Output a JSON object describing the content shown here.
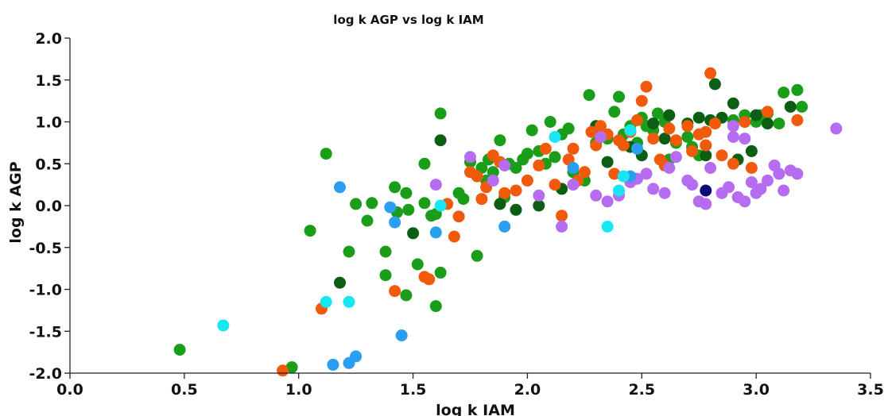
{
  "chart_data": {
    "type": "scatter",
    "title": "log k AGP vs log k IAM",
    "xlabel": "log k IAM",
    "ylabel": "log k AGP",
    "xlim": [
      0.0,
      3.5
    ],
    "ylim": [
      -2.0,
      2.0
    ],
    "x_ticks": [
      "0.0",
      "0.5",
      "1.0",
      "1.5",
      "2.0",
      "2.5",
      "3.0",
      "3.5"
    ],
    "y_ticks": [
      "-2.0",
      "-1.5",
      "-1.0",
      "-0.5",
      "0.0",
      "0.5",
      "1.0",
      "1.5",
      "2.0"
    ],
    "grid": false,
    "legend": "none",
    "series": [
      {
        "color": "#1a9e1a",
        "points": [
          [
            0.48,
            -1.72
          ],
          [
            0.97,
            -1.93
          ],
          [
            1.05,
            -0.3
          ],
          [
            1.12,
            0.62
          ],
          [
            1.22,
            -0.55
          ],
          [
            1.25,
            0.02
          ],
          [
            1.3,
            -0.18
          ],
          [
            1.32,
            0.03
          ],
          [
            1.38,
            -0.55
          ],
          [
            1.38,
            -0.83
          ],
          [
            1.42,
            0.22
          ],
          [
            1.43,
            -0.08
          ],
          [
            1.47,
            0.15
          ],
          [
            1.48,
            -0.05
          ],
          [
            1.47,
            -1.07
          ],
          [
            1.52,
            -0.7
          ],
          [
            1.55,
            0.5
          ],
          [
            1.55,
            0.03
          ],
          [
            1.58,
            -0.12
          ],
          [
            1.6,
            -0.1
          ],
          [
            1.6,
            -1.2
          ],
          [
            1.62,
            1.1
          ],
          [
            1.62,
            -0.8
          ],
          [
            1.7,
            0.15
          ],
          [
            1.72,
            0.08
          ],
          [
            1.75,
            0.52
          ],
          [
            1.78,
            -0.6
          ],
          [
            1.8,
            0.45
          ],
          [
            1.82,
            0.3
          ],
          [
            1.83,
            0.55
          ],
          [
            1.85,
            0.4
          ],
          [
            1.88,
            0.78
          ],
          [
            1.9,
            0.1
          ],
          [
            1.92,
            0.5
          ],
          [
            1.95,
            0.45
          ],
          [
            1.98,
            0.55
          ],
          [
            2.0,
            0.62
          ],
          [
            2.02,
            0.9
          ],
          [
            2.05,
            0.65
          ],
          [
            2.08,
            0.5
          ],
          [
            2.1,
            1.0
          ],
          [
            2.12,
            0.58
          ],
          [
            2.15,
            0.85
          ],
          [
            2.18,
            0.92
          ],
          [
            2.2,
            0.4
          ],
          [
            2.25,
            0.3
          ],
          [
            2.27,
            1.32
          ],
          [
            2.3,
            0.75
          ],
          [
            2.35,
            0.8
          ],
          [
            2.38,
            1.12
          ],
          [
            2.4,
            1.3
          ],
          [
            2.42,
            0.85
          ],
          [
            2.45,
            0.95
          ],
          [
            2.48,
            0.75
          ],
          [
            2.5,
            1.05
          ],
          [
            2.52,
            0.95
          ],
          [
            2.55,
            0.9
          ],
          [
            2.57,
            1.1
          ],
          [
            2.6,
            1.0
          ],
          [
            2.62,
            0.55
          ],
          [
            2.65,
            0.75
          ],
          [
            2.7,
            0.82
          ],
          [
            2.72,
            0.7
          ],
          [
            2.75,
            0.6
          ],
          [
            2.78,
            0.72
          ],
          [
            2.95,
            1.08
          ],
          [
            3.0,
            1.0
          ],
          [
            3.05,
            1.1
          ],
          [
            3.1,
            0.98
          ],
          [
            3.12,
            1.35
          ],
          [
            3.18,
            1.38
          ],
          [
            3.2,
            1.18
          ],
          [
            3.02,
            1.08
          ],
          [
            2.9,
            1.02
          ]
        ]
      },
      {
        "color": "#0b5e12",
        "points": [
          [
            1.18,
            -0.92
          ],
          [
            1.5,
            -0.33
          ],
          [
            1.62,
            0.78
          ],
          [
            1.88,
            0.02
          ],
          [
            1.95,
            -0.05
          ],
          [
            2.05,
            0.0
          ],
          [
            2.15,
            0.2
          ],
          [
            2.3,
            0.95
          ],
          [
            2.35,
            0.52
          ],
          [
            2.45,
            0.7
          ],
          [
            2.5,
            0.6
          ],
          [
            2.55,
            0.98
          ],
          [
            2.6,
            0.8
          ],
          [
            2.62,
            1.08
          ],
          [
            2.7,
            0.98
          ],
          [
            2.75,
            1.05
          ],
          [
            2.8,
            1.02
          ],
          [
            2.82,
            1.45
          ],
          [
            2.85,
            1.05
          ],
          [
            2.9,
            1.22
          ],
          [
            2.95,
            1.0
          ],
          [
            2.98,
            0.65
          ],
          [
            3.0,
            1.08
          ],
          [
            3.05,
            0.98
          ],
          [
            3.15,
            1.18
          ],
          [
            2.92,
            0.55
          ],
          [
            2.78,
            0.6
          ]
        ]
      },
      {
        "color": "#f05a0a",
        "points": [
          [
            0.93,
            -1.97
          ],
          [
            1.1,
            -1.23
          ],
          [
            1.42,
            -1.02
          ],
          [
            1.55,
            -0.85
          ],
          [
            1.57,
            -0.88
          ],
          [
            1.65,
            0.02
          ],
          [
            1.68,
            -0.37
          ],
          [
            1.7,
            -0.13
          ],
          [
            1.75,
            0.4
          ],
          [
            1.78,
            0.35
          ],
          [
            1.8,
            0.08
          ],
          [
            1.82,
            0.22
          ],
          [
            1.85,
            0.6
          ],
          [
            1.88,
            0.52
          ],
          [
            1.9,
            0.15
          ],
          [
            1.95,
            0.18
          ],
          [
            2.0,
            0.3
          ],
          [
            2.05,
            0.48
          ],
          [
            2.08,
            0.68
          ],
          [
            2.12,
            0.25
          ],
          [
            2.15,
            -0.12
          ],
          [
            2.18,
            0.55
          ],
          [
            2.2,
            0.68
          ],
          [
            2.22,
            0.3
          ],
          [
            2.25,
            0.4
          ],
          [
            2.28,
            0.88
          ],
          [
            2.3,
            0.72
          ],
          [
            2.32,
            0.95
          ],
          [
            2.35,
            0.85
          ],
          [
            2.38,
            0.38
          ],
          [
            2.4,
            0.78
          ],
          [
            2.42,
            0.72
          ],
          [
            2.45,
            0.88
          ],
          [
            2.48,
            1.02
          ],
          [
            2.5,
            1.25
          ],
          [
            2.52,
            1.42
          ],
          [
            2.55,
            0.8
          ],
          [
            2.58,
            0.55
          ],
          [
            2.6,
            0.48
          ],
          [
            2.62,
            0.92
          ],
          [
            2.65,
            0.78
          ],
          [
            2.7,
            0.95
          ],
          [
            2.72,
            0.65
          ],
          [
            2.75,
            0.85
          ],
          [
            2.78,
            0.72
          ],
          [
            2.8,
            1.58
          ],
          [
            2.82,
            0.98
          ],
          [
            2.85,
            0.6
          ],
          [
            2.9,
            0.5
          ],
          [
            2.95,
            1.0
          ],
          [
            2.98,
            0.45
          ],
          [
            3.05,
            1.12
          ],
          [
            3.18,
            1.02
          ],
          [
            2.78,
            0.88
          ]
        ]
      },
      {
        "color": "#b56cf0",
        "points": [
          [
            1.6,
            0.25
          ],
          [
            1.75,
            0.58
          ],
          [
            1.85,
            0.3
          ],
          [
            1.9,
            0.48
          ],
          [
            2.05,
            0.12
          ],
          [
            2.15,
            -0.25
          ],
          [
            2.2,
            0.25
          ],
          [
            2.3,
            0.12
          ],
          [
            2.32,
            0.82
          ],
          [
            2.35,
            0.05
          ],
          [
            2.4,
            0.12
          ],
          [
            2.45,
            0.28
          ],
          [
            2.48,
            0.32
          ],
          [
            2.52,
            0.38
          ],
          [
            2.55,
            0.2
          ],
          [
            2.6,
            0.15
          ],
          [
            2.62,
            0.45
          ],
          [
            2.65,
            0.58
          ],
          [
            2.7,
            0.3
          ],
          [
            2.72,
            0.25
          ],
          [
            2.75,
            0.05
          ],
          [
            2.78,
            0.02
          ],
          [
            2.8,
            0.45
          ],
          [
            2.85,
            0.15
          ],
          [
            2.88,
            0.22
          ],
          [
            2.9,
            0.95
          ],
          [
            2.92,
            0.1
          ],
          [
            2.95,
            0.05
          ],
          [
            2.98,
            0.28
          ],
          [
            3.0,
            0.15
          ],
          [
            3.02,
            0.2
          ],
          [
            3.05,
            0.3
          ],
          [
            3.08,
            0.48
          ],
          [
            3.1,
            0.38
          ],
          [
            3.12,
            0.18
          ],
          [
            3.15,
            0.42
          ],
          [
            3.18,
            0.38
          ],
          [
            3.35,
            0.92
          ],
          [
            2.9,
            0.82
          ],
          [
            2.95,
            0.8
          ]
        ]
      },
      {
        "color": "#2a9ef0",
        "points": [
          [
            1.18,
            0.22
          ],
          [
            1.15,
            -1.9
          ],
          [
            1.22,
            -1.88
          ],
          [
            1.25,
            -1.8
          ],
          [
            1.4,
            -0.02
          ],
          [
            1.42,
            -0.2
          ],
          [
            1.45,
            -1.55
          ],
          [
            1.6,
            -0.32
          ],
          [
            1.9,
            -0.25
          ],
          [
            2.2,
            0.45
          ],
          [
            2.45,
            0.35
          ],
          [
            2.48,
            0.68
          ]
        ]
      },
      {
        "color": "#18e6f2",
        "points": [
          [
            0.67,
            -1.43
          ],
          [
            1.12,
            -1.15
          ],
          [
            1.22,
            -1.15
          ],
          [
            1.62,
            0.0
          ],
          [
            2.12,
            0.82
          ],
          [
            2.35,
            -0.25
          ],
          [
            2.4,
            0.18
          ],
          [
            2.42,
            0.35
          ],
          [
            2.45,
            0.9
          ]
        ]
      },
      {
        "color": "#0a0a78",
        "points": [
          [
            2.78,
            0.18
          ]
        ]
      }
    ]
  }
}
